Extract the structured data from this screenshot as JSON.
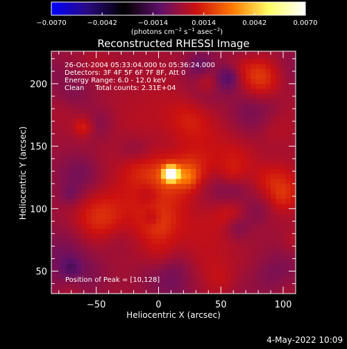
{
  "colorbar": {
    "ticks": [
      "−0.0070",
      "−0.0042",
      "−0.0014",
      "0.0014",
      "0.0042",
      "0.0070"
    ],
    "tick_values": [
      -0.007,
      -0.0042,
      -0.0014,
      0.0014,
      0.0042,
      0.007
    ],
    "units_prefix": "(photons cm",
    "units_sup1": "−2",
    "units_mid": " s",
    "units_sup2": "−1",
    "units_mid2": " asec",
    "units_sup3": "−2",
    "units_suffix": ")",
    "colors": [
      "#0000ff",
      "#2a0a80",
      "#000000",
      "#60106a",
      "#cc1010",
      "#ff7a00",
      "#ffff66",
      "#ffffff"
    ]
  },
  "image": {
    "title": "Reconstructed RHESSI Image",
    "info_lines": [
      "26-Oct-2004 05:33:04.000 to 05:36:24.000",
      "Detectors: 3F 4F 5F 6F 7F 8F, Att 0",
      "Energy Range: 6.0 - 12.0 keV",
      "Clean     Total counts: 2.31E+04"
    ],
    "peak_label": "Position of Peak = [10,128]",
    "timestamp": "4-May-2022 10:09"
  },
  "chart_data": {
    "type": "heatmap",
    "title": "Reconstructed RHESSI Image",
    "xlabel": "Heliocentric X (arcsec)",
    "ylabel": "Heliocentric Y (arcsec)",
    "xlim": [
      -86,
      110
    ],
    "ylim": [
      32,
      226
    ],
    "x_ticks": [
      -50,
      0,
      50,
      100
    ],
    "y_ticks": [
      50,
      100,
      150,
      200
    ],
    "x_tick_labels": [
      "−50",
      "0",
      "50",
      "100"
    ],
    "y_tick_labels": [
      "50",
      "100",
      "150",
      "200"
    ],
    "peak": {
      "x": 10,
      "y": 128
    },
    "colorbar_range": [
      -0.007,
      0.007
    ],
    "colorbar_unit": "photons cm^-2 s^-1 asec^-2"
  }
}
